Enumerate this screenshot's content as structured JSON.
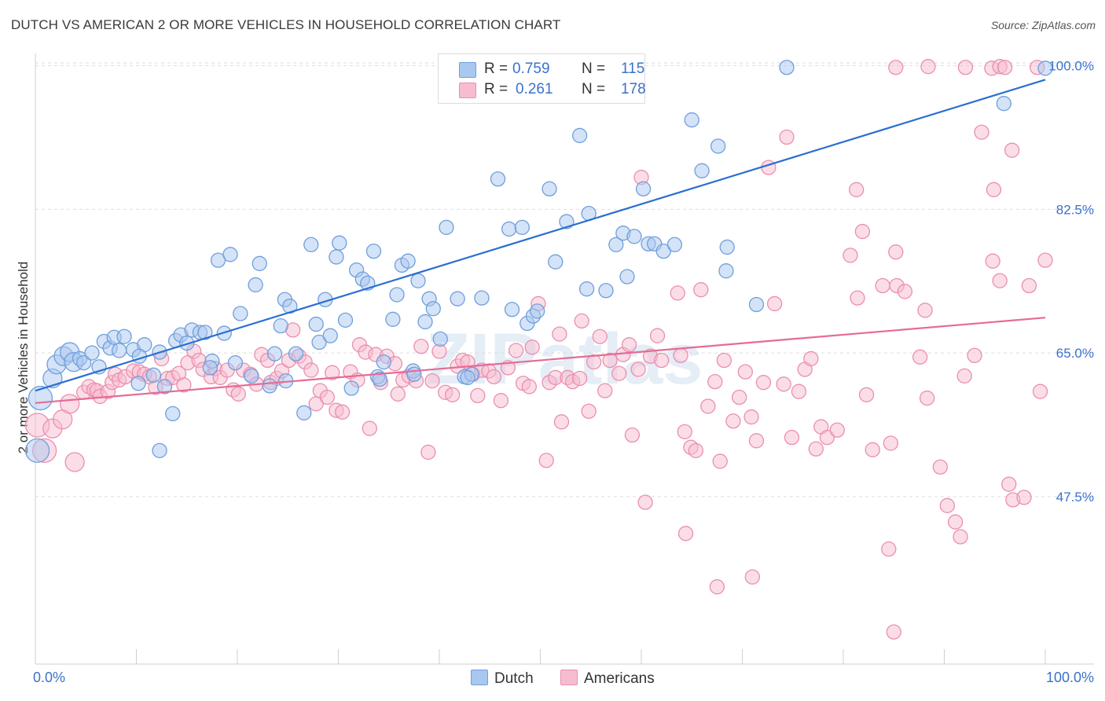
{
  "title": "DUTCH VS AMERICAN 2 OR MORE VEHICLES IN HOUSEHOLD CORRELATION CHART",
  "source": "Source: ZipAtlas.com",
  "watermark": "ZIPatlas",
  "colors": {
    "dutch_fill": "#a9c8f0",
    "dutch_stroke": "#6f9fdc",
    "dutch_line": "#2a6fd1",
    "americans_fill": "#f7bcd0",
    "americans_stroke": "#ea8fae",
    "americans_line": "#e56b96",
    "tick_label": "#3a72cc",
    "grid": "#dddddd"
  },
  "legend": {
    "rows": [
      {
        "r_label": "R =",
        "r_value": "0.759",
        "n_label": "N =",
        "n_value": "115"
      },
      {
        "r_label": "R =",
        "r_value": "0.261",
        "n_label": "N =",
        "n_value": "178"
      }
    ]
  },
  "bottom_legend": {
    "dutch": "Dutch",
    "americans": "Americans"
  },
  "x_tick_labels": {
    "left": "0.0%",
    "right": "100.0%"
  },
  "chart_data": {
    "type": "scatter",
    "title": "DUTCH VS AMERICAN 2 OR MORE VEHICLES IN HOUSEHOLD CORRELATION CHART",
    "xlabel": "",
    "ylabel": "2 or more Vehicles in Household",
    "xlim": [
      0,
      100
    ],
    "ylim": [
      29.0,
      101.5
    ],
    "y_ticks": [
      47.5,
      65.0,
      82.5,
      100.0
    ],
    "y_tick_labels": [
      "47.5%",
      "65.0%",
      "82.5%",
      "100.0%"
    ],
    "grid": "horizontal dashed",
    "legend_position": "top-center",
    "series": [
      {
        "name": "Dutch",
        "r": 0.759,
        "n": 115,
        "trend": {
          "x": [
            0,
            100
          ],
          "y": [
            60.4,
            98.3
          ]
        },
        "points": [
          [
            0.5,
            59.5
          ],
          [
            0.2,
            53.1
          ],
          [
            1.7,
            61.9
          ],
          [
            2.1,
            63.6
          ],
          [
            2.8,
            64.6
          ],
          [
            3.4,
            65.1
          ],
          [
            3.8,
            63.9
          ],
          [
            4.4,
            64.3
          ],
          [
            4.8,
            63.8
          ],
          [
            5.6,
            65.0
          ],
          [
            6.3,
            63.3
          ],
          [
            6.8,
            66.4
          ],
          [
            7.4,
            65.6
          ],
          [
            7.8,
            66.9
          ],
          [
            8.3,
            65.3
          ],
          [
            8.8,
            67.0
          ],
          [
            9.7,
            65.4
          ],
          [
            10.2,
            61.3
          ],
          [
            10.8,
            66.0
          ],
          [
            11.7,
            62.3
          ],
          [
            12.3,
            65.1
          ],
          [
            12.8,
            60.9
          ],
          [
            13.6,
            57.6
          ],
          [
            13.9,
            66.5
          ],
          [
            14.4,
            67.2
          ],
          [
            15.0,
            66.2
          ],
          [
            15.5,
            67.8
          ],
          [
            16.3,
            67.5
          ],
          [
            16.8,
            67.5
          ],
          [
            17.5,
            64.0
          ],
          [
            18.1,
            76.3
          ],
          [
            18.7,
            67.4
          ],
          [
            19.3,
            77.0
          ],
          [
            19.8,
            63.8
          ],
          [
            20.3,
            69.8
          ],
          [
            21.4,
            62.2
          ],
          [
            21.8,
            73.3
          ],
          [
            22.2,
            75.9
          ],
          [
            23.2,
            61.0
          ],
          [
            23.7,
            64.9
          ],
          [
            24.3,
            68.3
          ],
          [
            24.7,
            71.5
          ],
          [
            25.2,
            70.7
          ],
          [
            25.8,
            64.9
          ],
          [
            26.6,
            57.7
          ],
          [
            27.3,
            78.2
          ],
          [
            27.8,
            68.5
          ],
          [
            28.1,
            66.3
          ],
          [
            28.7,
            71.5
          ],
          [
            29.2,
            67.1
          ],
          [
            29.8,
            76.7
          ],
          [
            30.1,
            78.4
          ],
          [
            30.7,
            69.0
          ],
          [
            31.3,
            60.7
          ],
          [
            31.8,
            75.1
          ],
          [
            32.4,
            74.0
          ],
          [
            32.9,
            73.5
          ],
          [
            33.5,
            77.4
          ],
          [
            33.9,
            62.1
          ],
          [
            34.5,
            63.9
          ],
          [
            35.4,
            69.1
          ],
          [
            35.8,
            72.1
          ],
          [
            36.3,
            75.7
          ],
          [
            36.9,
            76.2
          ],
          [
            37.4,
            62.8
          ],
          [
            37.9,
            73.8
          ],
          [
            38.6,
            68.8
          ],
          [
            39.0,
            71.6
          ],
          [
            39.4,
            70.4
          ],
          [
            40.1,
            66.7
          ],
          [
            40.7,
            80.3
          ],
          [
            41.8,
            71.6
          ],
          [
            42.5,
            62.1
          ],
          [
            43.2,
            62.4
          ],
          [
            44.2,
            71.7
          ],
          [
            45.0,
            96.3
          ],
          [
            45.8,
            86.2
          ],
          [
            46.9,
            80.1
          ],
          [
            47.2,
            70.3
          ],
          [
            48.2,
            80.3
          ],
          [
            48.7,
            68.6
          ],
          [
            49.3,
            69.5
          ],
          [
            49.7,
            70.1
          ],
          [
            50.9,
            85.0
          ],
          [
            51.5,
            76.1
          ],
          [
            52.6,
            81.0
          ],
          [
            53.9,
            91.5
          ],
          [
            54.8,
            82.0
          ],
          [
            54.6,
            72.8
          ],
          [
            56.5,
            72.6
          ],
          [
            57.5,
            78.2
          ],
          [
            58.2,
            79.6
          ],
          [
            58.6,
            74.3
          ],
          [
            59.3,
            79.2
          ],
          [
            60.2,
            85.0
          ],
          [
            60.7,
            78.3
          ],
          [
            61.3,
            78.3
          ],
          [
            62.2,
            77.4
          ],
          [
            63.3,
            78.2
          ],
          [
            65.0,
            93.4
          ],
          [
            66.0,
            87.2
          ],
          [
            67.6,
            90.2
          ],
          [
            68.5,
            77.9
          ],
          [
            68.4,
            75.0
          ],
          [
            71.4,
            70.9
          ],
          [
            74.4,
            99.8
          ],
          [
            95.9,
            95.4
          ],
          [
            100.0,
            99.7
          ],
          [
            12.3,
            53.1
          ],
          [
            42.8,
            62.0
          ],
          [
            34.1,
            61.8
          ],
          [
            37.5,
            62.4
          ],
          [
            10.3,
            64.6
          ],
          [
            24.8,
            61.6
          ],
          [
            17.3,
            63.2
          ]
        ]
      },
      {
        "name": "Americans",
        "r": 0.261,
        "n": 178,
        "trend": {
          "x": [
            0,
            100
          ],
          "y": [
            58.9,
            69.3
          ]
        },
        "points": [
          [
            0.2,
            56.2
          ],
          [
            0.9,
            53.1
          ],
          [
            1.7,
            55.8
          ],
          [
            2.7,
            56.9
          ],
          [
            3.4,
            58.8
          ],
          [
            3.9,
            51.7
          ],
          [
            4.8,
            60.2
          ],
          [
            5.3,
            60.9
          ],
          [
            5.8,
            60.5
          ],
          [
            6.1,
            60.4
          ],
          [
            6.4,
            59.7
          ],
          [
            7.2,
            60.3
          ],
          [
            7.6,
            61.4
          ],
          [
            7.9,
            62.4
          ],
          [
            8.3,
            61.7
          ],
          [
            8.9,
            62.1
          ],
          [
            9.7,
            62.8
          ],
          [
            10.3,
            62.7
          ],
          [
            10.8,
            62.4
          ],
          [
            11.3,
            62.1
          ],
          [
            11.9,
            60.8
          ],
          [
            12.5,
            64.3
          ],
          [
            13.1,
            61.9
          ],
          [
            13.6,
            62.0
          ],
          [
            14.2,
            62.5
          ],
          [
            14.7,
            61.1
          ],
          [
            15.1,
            63.8
          ],
          [
            15.7,
            65.2
          ],
          [
            16.2,
            64.1
          ],
          [
            16.6,
            63.0
          ],
          [
            17.4,
            62.1
          ],
          [
            17.8,
            63.1
          ],
          [
            18.3,
            62.0
          ],
          [
            19.0,
            62.9
          ],
          [
            19.6,
            60.5
          ],
          [
            20.1,
            60.0
          ],
          [
            20.6,
            62.9
          ],
          [
            21.3,
            62.4
          ],
          [
            21.9,
            61.2
          ],
          [
            22.4,
            64.8
          ],
          [
            23.0,
            64.1
          ],
          [
            23.3,
            61.4
          ],
          [
            23.9,
            61.9
          ],
          [
            24.4,
            62.8
          ],
          [
            25.1,
            64.1
          ],
          [
            25.5,
            67.8
          ],
          [
            26.1,
            64.6
          ],
          [
            26.7,
            63.9
          ],
          [
            27.3,
            62.9
          ],
          [
            27.8,
            58.8
          ],
          [
            28.2,
            60.4
          ],
          [
            28.9,
            59.6
          ],
          [
            29.4,
            62.6
          ],
          [
            29.8,
            58.0
          ],
          [
            30.4,
            57.8
          ],
          [
            31.2,
            62.7
          ],
          [
            31.9,
            61.7
          ],
          [
            32.1,
            66.0
          ],
          [
            32.7,
            65.1
          ],
          [
            33.1,
            55.8
          ],
          [
            33.7,
            64.8
          ],
          [
            34.2,
            61.4
          ],
          [
            34.8,
            64.6
          ],
          [
            35.6,
            63.7
          ],
          [
            35.9,
            60.0
          ],
          [
            36.4,
            61.7
          ],
          [
            37.0,
            62.2
          ],
          [
            37.7,
            61.6
          ],
          [
            38.2,
            65.8
          ],
          [
            38.9,
            52.9
          ],
          [
            39.3,
            61.6
          ],
          [
            40.0,
            65.2
          ],
          [
            40.6,
            60.2
          ],
          [
            41.3,
            59.9
          ],
          [
            41.8,
            63.4
          ],
          [
            42.3,
            64.1
          ],
          [
            42.8,
            63.9
          ],
          [
            43.3,
            62.4
          ],
          [
            43.8,
            59.8
          ],
          [
            44.2,
            62.9
          ],
          [
            44.9,
            62.8
          ],
          [
            45.4,
            62.1
          ],
          [
            46.1,
            59.2
          ],
          [
            46.8,
            63.2
          ],
          [
            47.6,
            65.3
          ],
          [
            48.3,
            61.3
          ],
          [
            48.9,
            60.9
          ],
          [
            49.2,
            65.7
          ],
          [
            49.8,
            71.0
          ],
          [
            50.6,
            51.9
          ],
          [
            50.9,
            61.4
          ],
          [
            51.5,
            62.0
          ],
          [
            51.9,
            67.3
          ],
          [
            52.1,
            56.6
          ],
          [
            52.7,
            62.0
          ],
          [
            53.2,
            61.5
          ],
          [
            53.9,
            61.9
          ],
          [
            54.1,
            68.9
          ],
          [
            54.8,
            57.9
          ],
          [
            55.3,
            63.9
          ],
          [
            55.9,
            67.0
          ],
          [
            56.4,
            60.4
          ],
          [
            56.9,
            64.1
          ],
          [
            57.8,
            62.5
          ],
          [
            58.2,
            64.8
          ],
          [
            58.8,
            66.0
          ],
          [
            59.1,
            55.0
          ],
          [
            59.7,
            63.0
          ],
          [
            60.0,
            86.4
          ],
          [
            60.9,
            64.6
          ],
          [
            61.6,
            67.1
          ],
          [
            62.0,
            64.1
          ],
          [
            63.6,
            72.3
          ],
          [
            63.9,
            64.7
          ],
          [
            64.3,
            55.4
          ],
          [
            64.9,
            53.5
          ],
          [
            65.4,
            53.1
          ],
          [
            65.9,
            72.7
          ],
          [
            66.6,
            58.5
          ],
          [
            67.3,
            61.5
          ],
          [
            67.8,
            51.8
          ],
          [
            68.2,
            64.1
          ],
          [
            69.1,
            56.7
          ],
          [
            69.7,
            59.6
          ],
          [
            70.3,
            62.7
          ],
          [
            70.9,
            57.2
          ],
          [
            71.4,
            54.3
          ],
          [
            72.1,
            61.4
          ],
          [
            72.6,
            87.6
          ],
          [
            73.2,
            71.0
          ],
          [
            74.1,
            61.2
          ],
          [
            74.4,
            91.3
          ],
          [
            74.9,
            54.7
          ],
          [
            75.6,
            60.3
          ],
          [
            76.2,
            63.0
          ],
          [
            76.8,
            64.3
          ],
          [
            77.3,
            53.3
          ],
          [
            77.8,
            56.0
          ],
          [
            78.4,
            54.7
          ],
          [
            79.4,
            55.6
          ],
          [
            80.7,
            76.9
          ],
          [
            81.4,
            71.7
          ],
          [
            81.9,
            79.8
          ],
          [
            82.3,
            59.9
          ],
          [
            82.9,
            53.2
          ],
          [
            83.9,
            73.2
          ],
          [
            84.7,
            54.0
          ],
          [
            85.3,
            73.2
          ],
          [
            86.1,
            72.5
          ],
          [
            87.6,
            64.5
          ],
          [
            88.3,
            59.5
          ],
          [
            89.6,
            51.1
          ],
          [
            90.3,
            46.4
          ],
          [
            91.1,
            44.4
          ],
          [
            91.6,
            42.6
          ],
          [
            92.0,
            62.2
          ],
          [
            93.0,
            64.7
          ],
          [
            93.7,
            91.9
          ],
          [
            94.8,
            76.2
          ],
          [
            95.5,
            73.8
          ],
          [
            96.4,
            49.0
          ],
          [
            96.8,
            47.1
          ],
          [
            97.9,
            47.4
          ],
          [
            98.4,
            73.2
          ],
          [
            99.5,
            60.3
          ],
          [
            100.0,
            76.3
          ],
          [
            85.2,
            99.8
          ],
          [
            88.4,
            99.9
          ],
          [
            92.1,
            99.8
          ],
          [
            94.7,
            99.7
          ],
          [
            95.5,
            99.9
          ],
          [
            96.0,
            99.8
          ],
          [
            99.2,
            99.8
          ],
          [
            96.7,
            89.7
          ],
          [
            94.9,
            84.9
          ],
          [
            88.1,
            70.2
          ],
          [
            81.3,
            84.9
          ],
          [
            85.2,
            77.3
          ],
          [
            60.4,
            46.8
          ],
          [
            64.4,
            43.0
          ],
          [
            67.5,
            36.5
          ],
          [
            71.0,
            37.7
          ],
          [
            84.5,
            41.1
          ],
          [
            85.0,
            31.0
          ]
        ]
      }
    ]
  }
}
